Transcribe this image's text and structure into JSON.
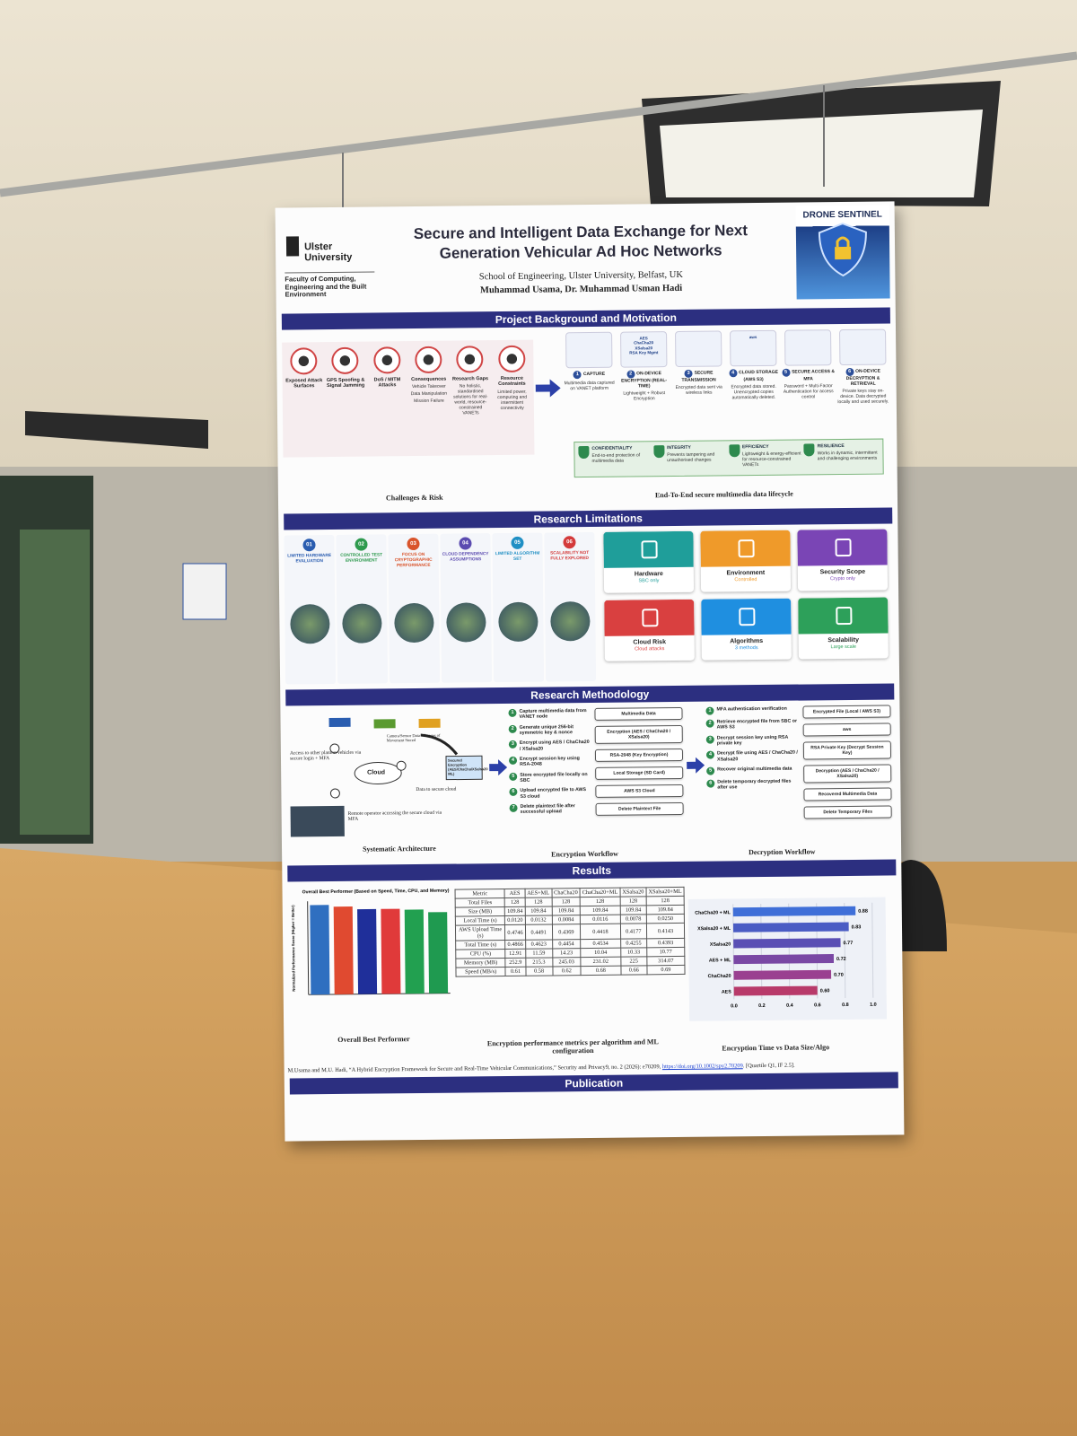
{
  "header": {
    "university": "Ulster University",
    "faculty": "Faculty of Computing, Engineering and the Built Environment",
    "title": "Secure and Intelligent Data Exchange for Next Generation Vehicular Ad Hoc Networks",
    "affiliation": "School of Engineering, Ulster University, Belfast, UK",
    "authors": "Muhammad Usama, Dr. Muhammad Usman Hadi",
    "badge": "DRONE SENTINEL"
  },
  "background": {
    "heading": "Project Background and Motivation",
    "challenges": [
      {
        "label": "Exposed Attack Surfaces"
      },
      {
        "label": "GPS Spoofing & Signal Jamming"
      },
      {
        "label": "DoS / MITM Attacks"
      },
      {
        "label": "Consequences",
        "items": [
          "Vehicle Takeover",
          "Data Manipulation",
          "Mission Failure"
        ]
      },
      {
        "label": "Research Gaps",
        "desc": "No holistic, standardised solutions for real-world, resource-constrained VANETs"
      },
      {
        "label": "Resource Constraints",
        "desc": "Limited power, computing and intermittent connectivity"
      }
    ],
    "challenges_caption": "Challenges & Risk",
    "lifecycle": [
      {
        "n": 1,
        "label": "CAPTURE",
        "desc": "Multimedia data captured on VANET platform"
      },
      {
        "n": 2,
        "label": "ON-DEVICE ENCRYPTION (REAL-TIME)",
        "desc": "Lightweight + Robust Encryption",
        "tags": [
          "AES",
          "ChaCha20",
          "XSalsa20",
          "RSA Key Mgmt"
        ]
      },
      {
        "n": 3,
        "label": "SECURE TRANSMISSION",
        "desc": "Encrypted data sent via wireless links"
      },
      {
        "n": 4,
        "label": "CLOUD STORAGE (AWS S3)",
        "desc": "Encrypted data stored. Unencrypted copies automatically deleted.",
        "tags": [
          "aws"
        ]
      },
      {
        "n": 5,
        "label": "SECURE ACCESS & MFA",
        "desc": "Password + Multi-Factor Authentication for access control"
      },
      {
        "n": 6,
        "label": "ON-DEVICE DECRYPTION & RETRIEVAL",
        "desc": "Private keys stay on-device. Data decrypted locally and used securely."
      }
    ],
    "properties": [
      {
        "label": "CONFIDENTIALITY",
        "desc": "End-to-end protection of multimedia data"
      },
      {
        "label": "INTEGRITY",
        "desc": "Prevents tampering and unauthorised changes"
      },
      {
        "label": "EFFICIENCY",
        "desc": "Lightweight & energy-efficient for resource-constrained VANETs"
      },
      {
        "label": "RESILIENCE",
        "desc": "Works in dynamic, intermittent and challenging environments"
      }
    ],
    "lifecycle_caption": "End-To-End secure multimedia data lifecycle"
  },
  "limitations": {
    "heading": "Research Limitations",
    "items": [
      {
        "n": "01",
        "label": "LIMITED HARDWARE EVALUATION",
        "color": "#2a5db0"
      },
      {
        "n": "02",
        "label": "CONTROLLED TEST ENVIRONMENT",
        "color": "#2e9a4e"
      },
      {
        "n": "03",
        "label": "FOCUS ON CRYPTOGRAPHIC PERFORMANCE",
        "color": "#d9542b"
      },
      {
        "n": "04",
        "label": "CLOUD DEPENDENCY ASSUMPTIONS",
        "color": "#5b4bb0"
      },
      {
        "n": "05",
        "label": "LIMITED ALGORITHM SET",
        "color": "#1f8fc4"
      },
      {
        "n": "06",
        "label": "SCALABILITY NOT FULLY EXPLORED",
        "color": "#d43a3a"
      }
    ],
    "tiles": [
      {
        "label": "Hardware",
        "sub": "SBC only",
        "color": "#1f9e9a"
      },
      {
        "label": "Environment",
        "sub": "Controlled",
        "color": "#ef9a2a"
      },
      {
        "label": "Security Scope",
        "sub": "Crypto only",
        "color": "#7a45b5"
      },
      {
        "label": "Cloud Risk",
        "sub": "Cloud attacks",
        "color": "#d94040"
      },
      {
        "label": "Algorithms",
        "sub": "3 methods",
        "color": "#1f8fe0"
      },
      {
        "label": "Scalability",
        "sub": "Large scale",
        "color": "#2da05a"
      }
    ]
  },
  "methodology": {
    "heading": "Research Methodology",
    "architecture": {
      "access": "Access to other platoon vehicles via secure login + MFA",
      "sensor": "Camera/Sensor Data + Images of Movement Stored",
      "cloud": "Cloud",
      "secured": "Secured Encryption (AES/ChaCha/XSalsa20 ML)",
      "data": "Data to secure cloud",
      "remote": "Remote operator accessing the secure cloud via MFA",
      "caption": "Systematic Architecture"
    },
    "encryption": {
      "steps": [
        {
          "n": 1,
          "text": "Capture multimedia data from VANET node"
        },
        {
          "n": 2,
          "text": "Generate unique 256-bit symmetric key & nonce"
        },
        {
          "n": 3,
          "text": "Encrypt using AES / ChaCha20 / XSalsa20"
        },
        {
          "n": 4,
          "text": "Encrypt session key using RSA-2048"
        },
        {
          "n": 5,
          "text": "Store encrypted file locally on SBC"
        },
        {
          "n": 6,
          "text": "Upload encrypted file to AWS S3 cloud"
        },
        {
          "n": 7,
          "text": "Delete plaintext file after successful upload"
        }
      ],
      "boxes": [
        "Multimedia Data",
        "Encryption (AES / ChaCha20 / XSalsa20)",
        "RSA-2048 (Key Encryption)",
        "Local Storage (SD Card)",
        "AWS S3 Cloud",
        "Delete Plaintext File"
      ],
      "caption": "Encryption Workflow"
    },
    "decryption": {
      "steps": [
        {
          "n": 1,
          "text": "MFA authentication verification"
        },
        {
          "n": 2,
          "text": "Retrieve encrypted file from SBC or AWS S3"
        },
        {
          "n": 3,
          "text": "Decrypt session key using RSA private key"
        },
        {
          "n": 4,
          "text": "Decrypt file using AES / ChaCha20 / XSalsa20"
        },
        {
          "n": 5,
          "text": "Recover original multimedia data"
        },
        {
          "n": 6,
          "text": "Delete temporary decrypted files after use"
        }
      ],
      "boxes": [
        "Encrypted File (Local / AWS S3)",
        "aws",
        "RSA Private Key (Decrypt Session Key)",
        "Decryption (AES / ChaCha20 / XSalsa20)",
        "Recovered Multimedia Data",
        "Delete Temporary Files"
      ],
      "caption": "Decryption Workflow"
    }
  },
  "results": {
    "heading": "Results",
    "bar_chart": {
      "type": "bar",
      "title": "Overall Best Performer (Based on Speed, Time, CPU, and Memory)",
      "y_label": "Normalized Performance Score (Higher = Better)",
      "values": [
        0.96,
        0.94,
        0.91,
        0.91,
        0.9,
        0.87
      ],
      "colors": [
        "#2f6fc0",
        "#e04a30",
        "#1f2f9a",
        "#e03a3a",
        "#22a050",
        "#1f9a50"
      ],
      "ylim": [
        0,
        1
      ]
    },
    "bar_caption": "Overall Best Performer",
    "table": {
      "columns": [
        "Metric",
        "AES",
        "AES+ML",
        "ChaCha20",
        "ChaCha20+ML",
        "XSalsa20",
        "XSalsa20+ML"
      ],
      "rows": [
        [
          "Total Files",
          "128",
          "128",
          "128",
          "128",
          "128",
          "128"
        ],
        [
          "Size (MB)",
          "109.84",
          "109.84",
          "109.84",
          "109.84",
          "109.84",
          "109.84"
        ],
        [
          "Local Time (s)",
          "0.0120",
          "0.0132",
          "0.0084",
          "0.0116",
          "0.0078",
          "0.0250"
        ],
        [
          "AWS Upload Time (s)",
          "0.4746",
          "0.4491",
          "0.4369",
          "0.4418",
          "0.4177",
          "0.4143"
        ],
        [
          "Total Time (s)",
          "0.4866",
          "0.4623",
          "0.4454",
          "0.4534",
          "0.4255",
          "0.4393"
        ],
        [
          "CPU (%)",
          "12.91",
          "11.59",
          "14.23",
          "10.04",
          "10.33",
          "10.77"
        ],
        [
          "Memory (MB)",
          "252.9",
          "215.3",
          "245.03",
          "231.02",
          "225",
          "314.07"
        ],
        [
          "Speed (MB/s)",
          "0.61",
          "0.58",
          "0.62",
          "0.68",
          "0.66",
          "0.69"
        ]
      ]
    },
    "table_caption": "Encryption performance metrics per algorithm and ML configuration",
    "hbar_chart": {
      "type": "barh",
      "categories": [
        "ChaCha20 + ML",
        "XSalsa20 + ML",
        "XSalsa20",
        "AES + ML",
        "ChaCha20",
        "AES"
      ],
      "values": [
        0.88,
        0.83,
        0.77,
        0.72,
        0.7,
        0.6
      ],
      "value_labels": [
        "0.88",
        "0.83",
        "0.77",
        "0.72",
        "0.70",
        "0.60"
      ],
      "colors": [
        "#3f6fd8",
        "#4a5cc4",
        "#5a4fb4",
        "#7a48a4",
        "#9a4090",
        "#b83a6a"
      ],
      "xlim": [
        0,
        1
      ],
      "xticks": [
        {
          "value": 0,
          "label": "0.0"
        },
        0.2,
        0.4,
        0.6,
        0.8,
        {
          "value": 1,
          "label": "1.0"
        }
      ],
      "grid": true
    },
    "hbar_caption": "Encryption Time vs Data Size/Algo"
  },
  "publication": {
    "heading": "Publication",
    "citation": "M.Usama and M.U. Hadi, “A Hybrid Encryption Framework for Secure and Real-Time Vehicular Communications,” Security and Privacy9, no. 2 (2026): e70209, ",
    "doi": "https://doi.org/10.1002/spy2.70209",
    "note": ". [Quartile Q1, IF 2.5]."
  }
}
